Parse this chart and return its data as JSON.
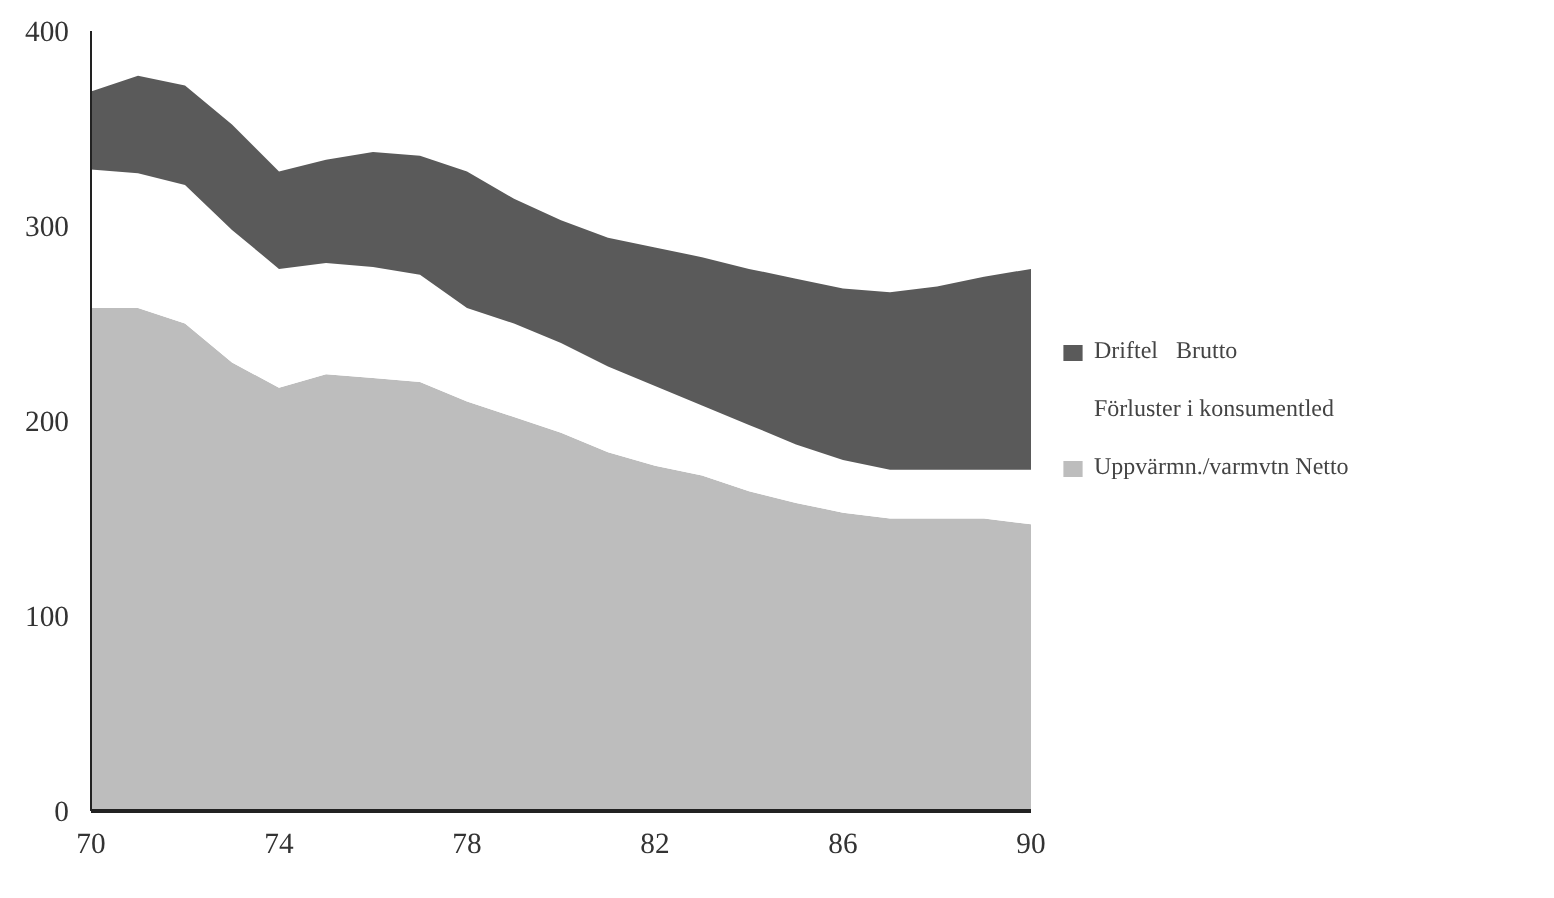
{
  "chart_data": {
    "type": "area",
    "stacked": true,
    "x": [
      1970,
      1971,
      1972,
      1973,
      1974,
      1975,
      1976,
      1977,
      1978,
      1979,
      1980,
      1981,
      1982,
      1983,
      1984,
      1985,
      1986,
      1987,
      1988,
      1989,
      1990
    ],
    "series": [
      {
        "name": "Uppvärmn./varmvtn Netto",
        "color": "#bdbdbd",
        "values": [
          258,
          258,
          250,
          230,
          217,
          224,
          222,
          220,
          210,
          202,
          194,
          184,
          177,
          172,
          164,
          158,
          153,
          150,
          150,
          150,
          147
        ]
      },
      {
        "name": "Förluster i konsumentled",
        "color": "#ffffff",
        "values": [
          71,
          69,
          71,
          68,
          61,
          57,
          57,
          55,
          48,
          48,
          46,
          44,
          41,
          36,
          34,
          30,
          27,
          25,
          25,
          25,
          28
        ]
      },
      {
        "name": "Driftel   Brutto",
        "color": "#5a5a5a",
        "values": [
          40,
          50,
          51,
          54,
          50,
          53,
          59,
          61,
          70,
          64,
          63,
          66,
          71,
          76,
          80,
          85,
          88,
          91,
          94,
          99,
          103
        ]
      }
    ],
    "xlim": [
      1970,
      1990
    ],
    "xticks": [
      {
        "value": 1970,
        "label": "70"
      },
      {
        "value": 1974,
        "label": "74"
      },
      {
        "value": 1978,
        "label": "78"
      },
      {
        "value": 1982,
        "label": "82"
      },
      {
        "value": 1986,
        "label": "86"
      },
      {
        "value": 1990,
        "label": "90"
      }
    ],
    "ylim": [
      0,
      400
    ],
    "yticks": [
      0,
      100,
      200,
      300,
      400
    ],
    "grid": false,
    "legend": "right"
  }
}
